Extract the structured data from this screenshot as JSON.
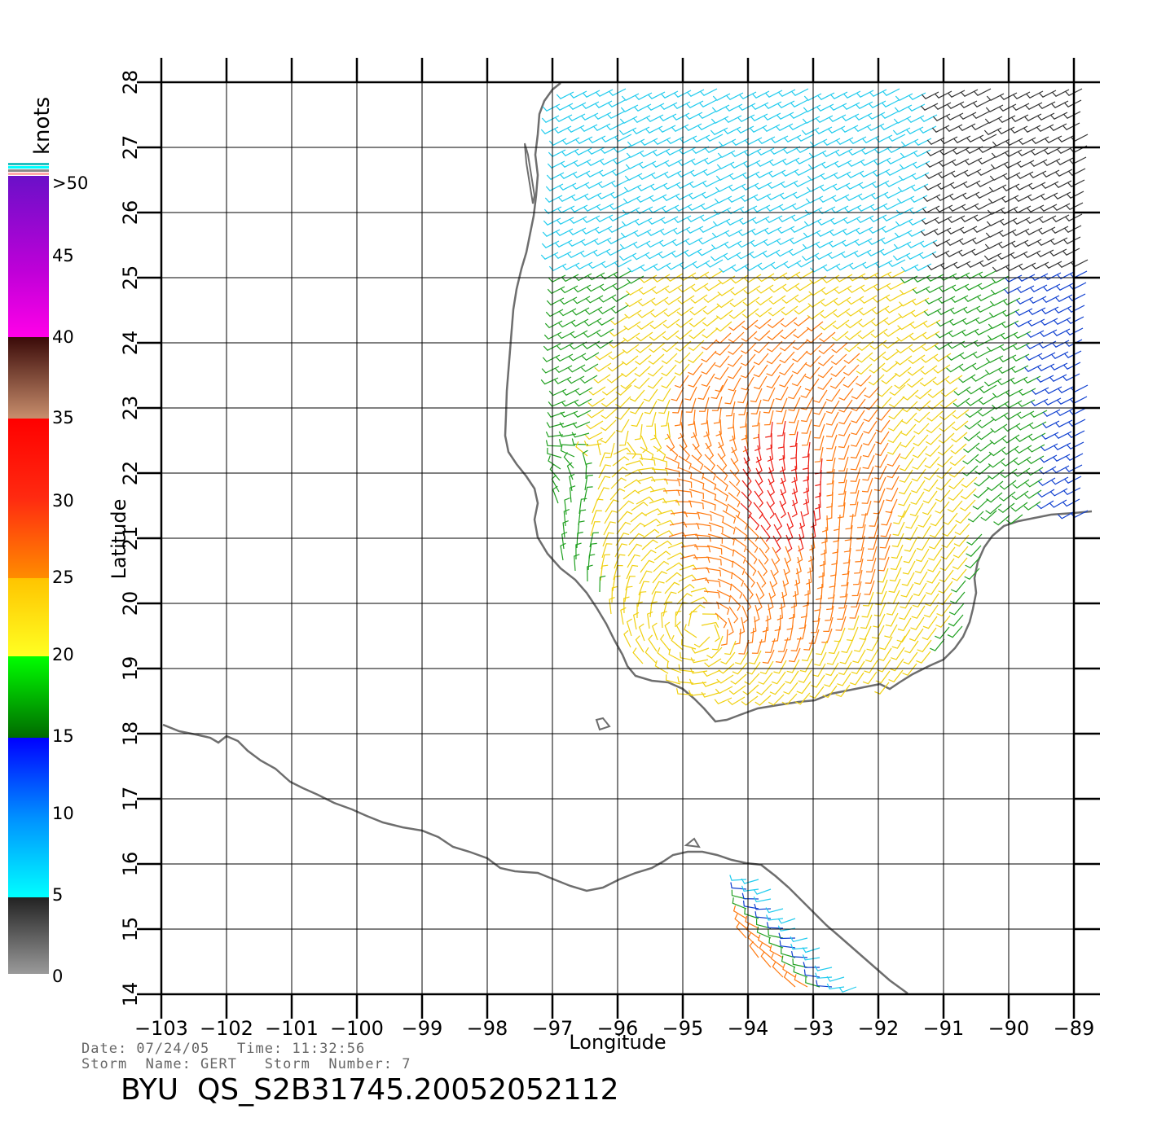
{
  "chart_data": {
    "type": "wind-vector-map",
    "xlabel": "Longitude",
    "ylabel": "Latitude",
    "xlim": [
      -103,
      -89
    ],
    "ylim": [
      14,
      28
    ],
    "x_ticks": [
      "−103",
      "−102",
      "−101",
      "−100",
      "−99",
      "−98",
      "−97",
      "−96",
      "−95",
      "−94",
      "−93",
      "−92",
      "−91",
      "−90",
      "−89"
    ],
    "y_ticks": [
      "14",
      "15",
      "16",
      "17",
      "18",
      "19",
      "20",
      "21",
      "22",
      "23",
      "24",
      "25",
      "26",
      "27",
      "28"
    ],
    "storm_center": {
      "lon": -94.7,
      "lat": 19.6
    },
    "wind_field_region": {
      "west_lon": -97,
      "east_lon": -89,
      "south_lat": 14,
      "north_lat": 28
    }
  },
  "colorbar": {
    "units": "knots",
    "labels": [
      ">50",
      "45",
      "40",
      "35",
      "30",
      "25",
      "20",
      "15",
      "10",
      "5",
      "0"
    ],
    "bands": [
      {
        "from": 50,
        "to": 40,
        "colors": [
          "#6a10c8",
          "#ff00e0"
        ]
      },
      {
        "from": 40,
        "to": 35,
        "colors": [
          "#3a0a08",
          "#c08868"
        ]
      },
      {
        "from": 35,
        "to": 25,
        "colors": [
          "#ff0000",
          "#ff8800"
        ]
      },
      {
        "from": 25,
        "to": 20,
        "colors": [
          "#ffc400",
          "#ffff20"
        ]
      },
      {
        "from": 20,
        "to": 15,
        "colors": [
          "#00ff00",
          "#006600"
        ]
      },
      {
        "from": 15,
        "to": 5,
        "colors": [
          "#0000ff",
          "#00ffff"
        ]
      },
      {
        "from": 5,
        "to": 0,
        "colors": [
          "#222222",
          "#999999"
        ]
      }
    ]
  },
  "info": {
    "date_line": "Date: 07/24/05   Time: 11:32:56",
    "storm_line": "Storm  Name: GERT   Storm  Number: 7",
    "title": "BYU  QS_S2B31745.20052052112"
  }
}
